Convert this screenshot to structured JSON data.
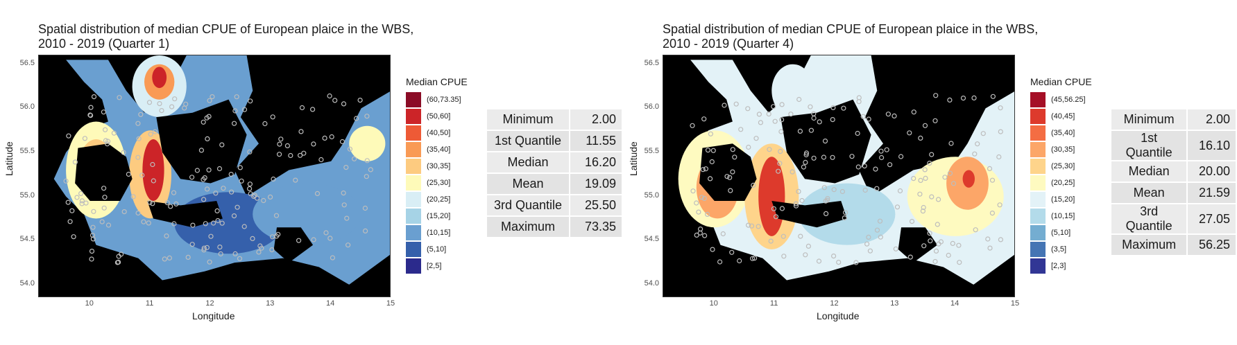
{
  "panels": [
    {
      "title_line1": "Spatial distribution of median CPUE of European plaice in the WBS,",
      "title_line2": "2010 - 2019 (Quarter 1)",
      "xlabel": "Longitude",
      "ylabel": "Latitude",
      "legend_title": "Median CPUE",
      "legend": [
        {
          "label": "(60,73.35]",
          "color": "#8b0c26"
        },
        {
          "label": "(50,60]",
          "color": "#cc2428"
        },
        {
          "label": "(40,50]",
          "color": "#ee5a36"
        },
        {
          "label": "(35,40]",
          "color": "#f99a55"
        },
        {
          "label": "(30,35]",
          "color": "#fdcb80"
        },
        {
          "label": "(25,30]",
          "color": "#fefab9"
        },
        {
          "label": "(20,25]",
          "color": "#d9eef5"
        },
        {
          "label": "(15,20]",
          "color": "#a6d3e6"
        },
        {
          "label": "(10,15]",
          "color": "#6a9fd0"
        },
        {
          "label": "(5,10]",
          "color": "#3560ab"
        },
        {
          "label": "[2,5]",
          "color": "#2b2a8c"
        }
      ],
      "stats": [
        {
          "label": "Minimum",
          "value": "2.00"
        },
        {
          "label": "1st Quantile",
          "value": "11.55"
        },
        {
          "label": "Median",
          "value": "16.20"
        },
        {
          "label": "Mean",
          "value": "19.09"
        },
        {
          "label": "3rd Quantile",
          "value": "25.50"
        },
        {
          "label": "Maximum",
          "value": "73.35"
        }
      ],
      "map": {
        "xticks": [
          "10",
          "11",
          "12",
          "13",
          "14",
          "15"
        ],
        "yticks": [
          "56.5",
          "56.0",
          "55.5",
          "55.0",
          "54.5",
          "54.0"
        ],
        "xlim": [
          9.15,
          15.0
        ],
        "ylim": [
          53.85,
          56.6
        ],
        "x_tick_values": [
          10,
          11,
          12,
          13,
          14,
          15
        ],
        "y_tick_values": [
          56.5,
          56.0,
          55.5,
          55.0,
          54.5,
          54.0
        ],
        "dominant_color": "#6a9fd0",
        "hotspot_color": "#cc2428"
      }
    },
    {
      "title_line1": "Spatial distribution of median CPUE of European plaice in the WBS,",
      "title_line2": "2010 - 2019 (Quarter 4)",
      "xlabel": "Longitude",
      "ylabel": "Latitude",
      "legend_title": "Median CPUE",
      "legend": [
        {
          "label": "(45,56.25]",
          "color": "#a50f26"
        },
        {
          "label": "(40,45]",
          "color": "#dd3a2c"
        },
        {
          "label": "(35,40]",
          "color": "#f46d43"
        },
        {
          "label": "(30,35]",
          "color": "#fca668"
        },
        {
          "label": "(25,30]",
          "color": "#fed48b"
        },
        {
          "label": "(20,25]",
          "color": "#fefac0"
        },
        {
          "label": "(15,20]",
          "color": "#e3f2f7"
        },
        {
          "label": "(10,15]",
          "color": "#b3dbea"
        },
        {
          "label": "(5,10]",
          "color": "#74add1"
        },
        {
          "label": "(3,5]",
          "color": "#4575b4"
        },
        {
          "label": "[2,3]",
          "color": "#313695"
        }
      ],
      "stats": [
        {
          "label": "Minimum",
          "value": "2.00"
        },
        {
          "label": "1st Quantile",
          "value": "16.10"
        },
        {
          "label": "Median",
          "value": "20.00"
        },
        {
          "label": "Mean",
          "value": "21.59"
        },
        {
          "label": "3rd Quantile",
          "value": "27.05"
        },
        {
          "label": "Maximum",
          "value": "56.25"
        }
      ],
      "map": {
        "xticks": [
          "10",
          "11",
          "12",
          "13",
          "14",
          "15"
        ],
        "yticks": [
          "56.5",
          "56.0",
          "55.5",
          "55.0",
          "54.5",
          "54.0"
        ],
        "xlim": [
          9.15,
          15.0
        ],
        "ylim": [
          53.85,
          56.6
        ],
        "x_tick_values": [
          10,
          11,
          12,
          13,
          14,
          15
        ],
        "y_tick_values": [
          56.5,
          56.0,
          55.5,
          55.0,
          54.5,
          54.0
        ],
        "dominant_color": "#e3f2f7",
        "hotspot_color": "#dd3a2c"
      }
    }
  ]
}
